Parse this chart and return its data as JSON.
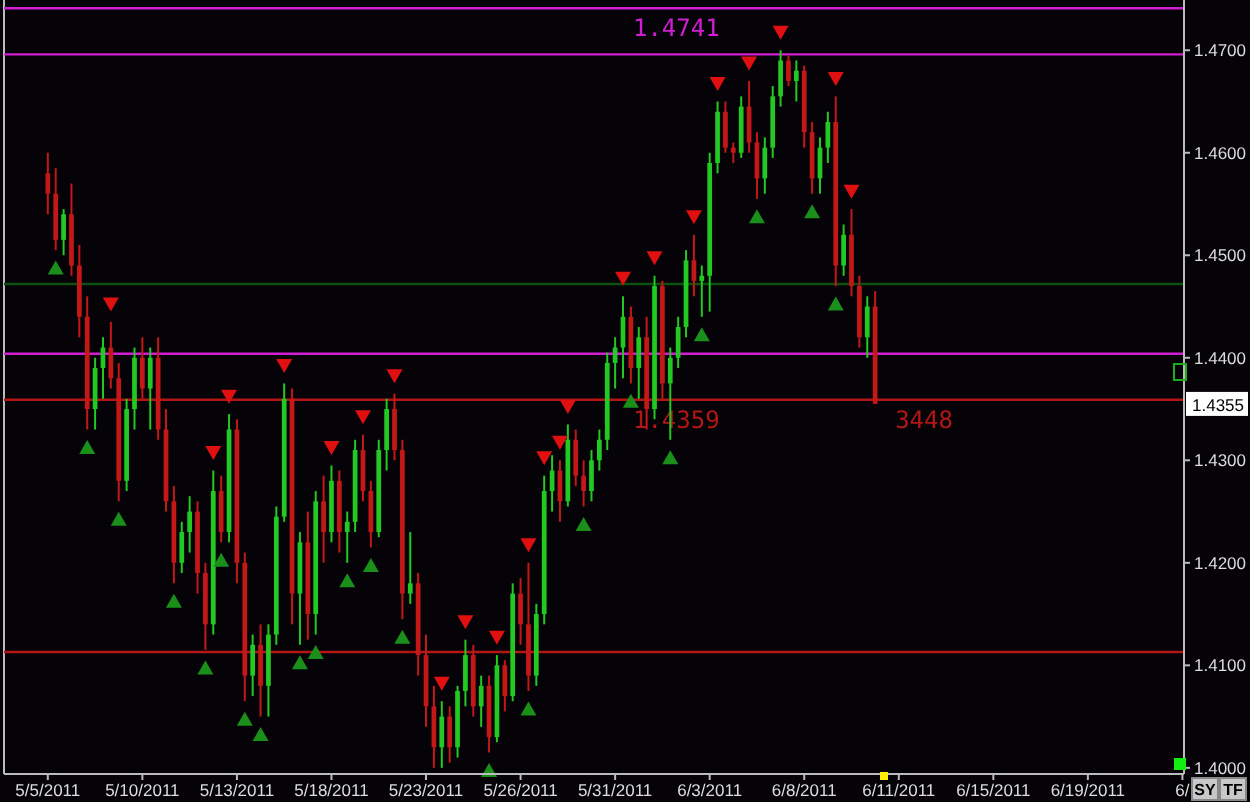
{
  "chart_data": {
    "type": "candlestick",
    "categories": [
      "5/5/2011",
      null,
      null,
      null,
      null,
      null,
      null,
      null,
      null,
      null,
      null,
      null,
      "5/10/2011",
      null,
      null,
      null,
      null,
      null,
      null,
      null,
      null,
      null,
      null,
      null,
      "5/13/2011",
      null,
      null,
      null,
      null,
      null,
      null,
      null,
      null,
      null,
      null,
      null,
      "5/18/2011",
      null,
      null,
      null,
      null,
      null,
      null,
      null,
      null,
      null,
      null,
      null,
      "5/23/2011",
      null,
      null,
      null,
      null,
      null,
      null,
      null,
      null,
      null,
      null,
      null,
      "5/26/2011",
      null,
      null,
      null,
      null,
      null,
      null,
      null,
      null,
      null,
      null,
      null,
      "5/31/2011",
      null,
      null,
      null,
      null,
      null,
      null,
      null,
      null,
      null,
      null,
      null,
      "6/3/2011",
      null,
      null,
      null,
      null,
      null,
      null,
      null,
      null,
      null,
      null,
      null,
      "6/8/2011",
      null,
      null,
      null,
      null,
      null,
      null,
      null,
      null,
      null,
      null,
      null,
      "6/11/2011",
      null,
      null,
      null,
      null,
      null,
      null,
      null,
      null,
      null,
      null,
      null,
      "6/15/2011",
      null,
      null,
      null,
      null,
      null,
      null,
      null,
      null,
      null,
      null,
      null,
      "6/19/2011",
      null,
      null,
      null,
      null,
      null,
      null,
      null,
      null,
      null,
      null,
      null,
      "6/"
    ],
    "ohlc": [
      [
        1.458,
        1.46,
        1.454,
        1.456
      ],
      [
        1.456,
        1.4585,
        1.4505,
        1.4515
      ],
      [
        1.4515,
        1.4545,
        1.45,
        1.454
      ],
      [
        1.454,
        1.457,
        1.448,
        1.449
      ],
      [
        1.449,
        1.451,
        1.442,
        1.444
      ],
      [
        1.444,
        1.446,
        1.433,
        1.435
      ],
      [
        1.435,
        1.44,
        1.433,
        1.439
      ],
      [
        1.439,
        1.442,
        1.436,
        1.441
      ],
      [
        1.441,
        1.4435,
        1.437,
        1.438
      ],
      [
        1.438,
        1.4395,
        1.426,
        1.428
      ],
      [
        1.428,
        1.436,
        1.427,
        1.435
      ],
      [
        1.435,
        1.441,
        1.433,
        1.44
      ],
      [
        1.44,
        1.442,
        1.436,
        1.437
      ],
      [
        1.437,
        1.441,
        1.433,
        1.44
      ],
      [
        1.44,
        1.442,
        1.432,
        1.433
      ],
      [
        1.433,
        1.435,
        1.425,
        1.426
      ],
      [
        1.426,
        1.4275,
        1.418,
        1.42
      ],
      [
        1.42,
        1.424,
        1.419,
        1.423
      ],
      [
        1.423,
        1.4265,
        1.421,
        1.425
      ],
      [
        1.425,
        1.426,
        1.417,
        1.419
      ],
      [
        1.419,
        1.42,
        1.4115,
        1.414
      ],
      [
        1.414,
        1.429,
        1.413,
        1.427
      ],
      [
        1.427,
        1.4285,
        1.422,
        1.423
      ],
      [
        1.423,
        1.4345,
        1.422,
        1.433
      ],
      [
        1.433,
        1.434,
        1.418,
        1.42
      ],
      [
        1.42,
        1.421,
        1.4065,
        1.409
      ],
      [
        1.409,
        1.413,
        1.407,
        1.412
      ],
      [
        1.412,
        1.414,
        1.405,
        1.408
      ],
      [
        1.408,
        1.414,
        1.405,
        1.413
      ],
      [
        1.413,
        1.4255,
        1.412,
        1.4245
      ],
      [
        1.4245,
        1.4375,
        1.424,
        1.436
      ],
      [
        1.436,
        1.437,
        1.414,
        1.417
      ],
      [
        1.417,
        1.423,
        1.412,
        1.422
      ],
      [
        1.422,
        1.425,
        1.4125,
        1.415
      ],
      [
        1.415,
        1.427,
        1.413,
        1.426
      ],
      [
        1.426,
        1.4285,
        1.42,
        1.423
      ],
      [
        1.423,
        1.4295,
        1.422,
        1.428
      ],
      [
        1.428,
        1.429,
        1.421,
        1.423
      ],
      [
        1.423,
        1.425,
        1.42,
        1.424
      ],
      [
        1.424,
        1.432,
        1.423,
        1.431
      ],
      [
        1.431,
        1.4325,
        1.426,
        1.427
      ],
      [
        1.427,
        1.428,
        1.4215,
        1.423
      ],
      [
        1.423,
        1.432,
        1.4225,
        1.431
      ],
      [
        1.431,
        1.436,
        1.429,
        1.435
      ],
      [
        1.435,
        1.4365,
        1.43,
        1.431
      ],
      [
        1.431,
        1.432,
        1.4145,
        1.417
      ],
      [
        1.417,
        1.423,
        1.416,
        1.418
      ],
      [
        1.418,
        1.419,
        1.409,
        1.411
      ],
      [
        1.411,
        1.413,
        1.404,
        1.406
      ],
      [
        1.406,
        1.408,
        1.4,
        1.402
      ],
      [
        1.402,
        1.4065,
        1.4,
        1.405
      ],
      [
        1.405,
        1.406,
        1.4005,
        1.402
      ],
      [
        1.402,
        1.408,
        1.401,
        1.4075
      ],
      [
        1.4075,
        1.4125,
        1.406,
        1.411
      ],
      [
        1.411,
        1.412,
        1.405,
        1.406
      ],
      [
        1.406,
        1.409,
        1.404,
        1.408
      ],
      [
        1.408,
        1.409,
        1.4015,
        1.403
      ],
      [
        1.403,
        1.411,
        1.4025,
        1.41
      ],
      [
        1.41,
        1.4105,
        1.4055,
        1.407
      ],
      [
        1.407,
        1.418,
        1.4065,
        1.417
      ],
      [
        1.417,
        1.4185,
        1.412,
        1.414
      ],
      [
        1.414,
        1.42,
        1.4075,
        1.409
      ],
      [
        1.409,
        1.416,
        1.408,
        1.415
      ],
      [
        1.415,
        1.4285,
        1.414,
        1.427
      ],
      [
        1.427,
        1.4305,
        1.425,
        1.429
      ],
      [
        1.429,
        1.43,
        1.424,
        1.426
      ],
      [
        1.426,
        1.4335,
        1.4255,
        1.432
      ],
      [
        1.432,
        1.433,
        1.4275,
        1.4285
      ],
      [
        1.4285,
        1.43,
        1.4255,
        1.427
      ],
      [
        1.427,
        1.431,
        1.426,
        1.43
      ],
      [
        1.43,
        1.433,
        1.429,
        1.432
      ],
      [
        1.432,
        1.4405,
        1.431,
        1.4395
      ],
      [
        1.4395,
        1.442,
        1.437,
        1.441
      ],
      [
        1.441,
        1.446,
        1.438,
        1.444
      ],
      [
        1.444,
        1.445,
        1.4375,
        1.439
      ],
      [
        1.439,
        1.443,
        1.436,
        1.442
      ],
      [
        1.442,
        1.444,
        1.433,
        1.435
      ],
      [
        1.435,
        1.448,
        1.434,
        1.447
      ],
      [
        1.447,
        1.4475,
        1.436,
        1.4375
      ],
      [
        1.4375,
        1.441,
        1.432,
        1.44
      ],
      [
        1.44,
        1.444,
        1.439,
        1.443
      ],
      [
        1.443,
        1.4505,
        1.442,
        1.4495
      ],
      [
        1.4495,
        1.452,
        1.446,
        1.4475
      ],
      [
        1.4475,
        1.449,
        1.444,
        1.448
      ],
      [
        1.448,
        1.46,
        1.4445,
        1.459
      ],
      [
        1.459,
        1.465,
        1.458,
        1.464
      ],
      [
        1.464,
        1.465,
        1.46,
        1.4605
      ],
      [
        1.4605,
        1.461,
        1.459,
        1.46
      ],
      [
        1.46,
        1.4655,
        1.4595,
        1.4645
      ],
      [
        1.4645,
        1.467,
        1.46,
        1.461
      ],
      [
        1.461,
        1.462,
        1.4555,
        1.4575
      ],
      [
        1.4575,
        1.4615,
        1.456,
        1.4605
      ],
      [
        1.4605,
        1.4665,
        1.4595,
        1.4655
      ],
      [
        1.4655,
        1.47,
        1.4645,
        1.469
      ],
      [
        1.469,
        1.4695,
        1.4665,
        1.467
      ],
      [
        1.467,
        1.469,
        1.465,
        1.468
      ],
      [
        1.468,
        1.4685,
        1.4605,
        1.462
      ],
      [
        1.462,
        1.463,
        1.456,
        1.4575
      ],
      [
        1.4575,
        1.4615,
        1.456,
        1.4605
      ],
      [
        1.4605,
        1.464,
        1.459,
        1.463
      ],
      [
        1.463,
        1.4655,
        1.447,
        1.449
      ],
      [
        1.449,
        1.453,
        1.448,
        1.452
      ],
      [
        1.452,
        1.4545,
        1.446,
        1.447
      ],
      [
        1.447,
        1.448,
        1.441,
        1.442
      ],
      [
        1.442,
        1.446,
        1.44,
        1.445
      ],
      [
        1.445,
        1.4465,
        1.4355,
        1.4355
      ],
      null,
      null,
      null,
      null,
      null,
      null,
      null,
      null,
      null,
      null,
      null,
      null,
      null,
      null,
      null,
      null,
      null,
      null,
      null,
      null,
      null,
      null,
      null,
      null,
      null,
      null,
      null,
      null,
      null,
      null,
      null,
      null,
      null,
      null,
      null,
      null,
      null,
      null,
      null
    ],
    "colors": [
      "#c41717",
      "#c41717",
      "#22c922",
      "#c41717",
      "#c41717",
      "#c41717",
      "#22c922",
      "#22c922",
      "#c41717",
      "#c41717",
      "#22c922",
      "#22c922",
      "#c41717",
      "#22c922",
      "#c41717",
      "#c41717",
      "#c41717",
      "#22c922",
      "#22c922",
      "#c41717",
      "#c41717",
      "#22c922",
      "#c41717",
      "#22c922",
      "#c41717",
      "#c41717",
      "#22c922",
      "#c41717",
      "#22c922",
      "#22c922",
      "#22c922",
      "#c41717",
      "#22c922",
      "#c41717",
      "#22c922",
      "#c41717",
      "#22c922",
      "#c41717",
      "#22c922",
      "#22c922",
      "#c41717",
      "#c41717",
      "#22c922",
      "#22c922",
      "#c41717",
      "#c41717",
      "#22c922",
      "#c41717",
      "#c41717",
      "#c41717",
      "#22c922",
      "#c41717",
      "#22c922",
      "#22c922",
      "#c41717",
      "#22c922",
      "#c41717",
      "#22c922",
      "#c41717",
      "#22c922",
      "#c41717",
      "#c41717",
      "#22c922",
      "#22c922",
      "#22c922",
      "#c41717",
      "#22c922",
      "#c41717",
      "#c41717",
      "#22c922",
      "#22c922",
      "#22c922",
      "#22c922",
      "#22c922",
      "#c41717",
      "#22c922",
      "#c41717",
      "#22c922",
      "#c41717",
      "#22c922",
      "#22c922",
      "#22c922",
      "#c41717",
      "#22c922",
      "#22c922",
      "#22c922",
      "#c41717",
      "#c41717",
      "#22c922",
      "#c41717",
      "#c41717",
      "#22c922",
      "#22c922",
      "#22c922",
      "#c41717",
      "#22c922",
      "#c41717",
      "#c41717",
      "#22c922",
      "#22c922",
      "#c41717",
      "#22c922",
      "#c41717",
      "#c41717",
      "#22c922",
      "#c41717",
      null,
      null,
      null,
      null,
      null,
      null,
      null,
      null,
      null,
      null,
      null,
      null,
      null,
      null,
      null,
      null,
      null,
      null,
      null,
      null,
      null,
      null,
      null,
      null,
      null,
      null,
      null,
      null,
      null,
      null,
      null,
      null,
      null,
      null,
      null,
      null,
      null,
      null,
      null
    ],
    "series": [
      {
        "type": "scatter",
        "marker": "triangle",
        "color": "#e01010",
        "values": [
          null,
          null,
          null,
          null,
          null,
          null,
          null,
          null,
          1.4453,
          null,
          null,
          null,
          null,
          null,
          null,
          null,
          null,
          null,
          null,
          null,
          null,
          1.4308,
          null,
          1.4363,
          null,
          null,
          null,
          null,
          null,
          null,
          1.4393,
          null,
          null,
          null,
          null,
          null,
          1.4313,
          null,
          null,
          null,
          1.4343,
          null,
          null,
          null,
          1.4383,
          null,
          null,
          null,
          null,
          null,
          1.4083,
          null,
          null,
          1.4143,
          null,
          null,
          null,
          1.4128,
          null,
          null,
          null,
          1.4218,
          null,
          1.4303,
          null,
          1.4318,
          1.4353,
          null,
          null,
          null,
          null,
          null,
          null,
          1.4478,
          null,
          null,
          null,
          1.4498,
          null,
          null,
          null,
          null,
          1.4538,
          null,
          null,
          1.4668,
          null,
          null,
          null,
          1.4688,
          null,
          null,
          null,
          1.4718,
          null,
          null,
          null,
          null,
          null,
          null,
          1.4673,
          null,
          1.4563,
          null,
          null,
          null,
          null,
          null,
          null,
          null,
          null,
          null,
          null,
          null,
          null,
          null,
          null,
          null,
          null,
          null,
          null,
          null,
          null,
          null,
          null,
          null,
          null,
          null,
          null,
          null,
          null,
          null,
          null,
          null,
          null,
          null,
          null,
          null,
          null,
          null,
          null,
          null,
          null,
          null,
          null
        ]
      },
      {
        "type": "scatter",
        "marker": "triangle",
        "color": "#1a8f1a",
        "values": [
          null,
          1.4487,
          null,
          null,
          null,
          1.4312,
          null,
          null,
          null,
          1.4242,
          null,
          null,
          null,
          null,
          null,
          null,
          1.4162,
          null,
          null,
          null,
          1.4097,
          null,
          1.4202,
          null,
          null,
          1.4047,
          null,
          1.4032,
          null,
          null,
          null,
          null,
          1.4102,
          null,
          1.4112,
          null,
          null,
          null,
          1.4182,
          null,
          null,
          1.4197,
          null,
          null,
          null,
          1.4127,
          null,
          null,
          null,
          null,
          null,
          null,
          null,
          null,
          null,
          null,
          1.3997,
          null,
          null,
          null,
          null,
          1.4057,
          null,
          null,
          null,
          null,
          null,
          null,
          1.4237,
          null,
          null,
          null,
          null,
          null,
          1.4357,
          null,
          null,
          null,
          null,
          1.4302,
          null,
          null,
          null,
          1.4422,
          null,
          null,
          null,
          null,
          null,
          null,
          1.4537,
          null,
          null,
          null,
          null,
          null,
          null,
          1.4542,
          null,
          null,
          1.4452,
          null,
          null,
          null,
          null,
          null,
          null,
          null,
          null,
          null,
          null,
          null,
          null,
          null,
          null,
          null,
          null,
          null,
          null,
          null,
          null,
          null,
          null,
          null,
          null,
          null,
          null,
          null,
          null,
          null,
          null,
          null,
          null,
          null,
          null,
          null,
          null,
          null,
          null,
          null,
          null,
          null,
          null,
          null,
          null
        ]
      }
    ],
    "ylim": [
      1.3994,
      1.4749
    ],
    "yticks": [
      {
        "value": 1.4,
        "label": "1.4000"
      },
      {
        "value": 1.41,
        "label": "1.4100"
      },
      {
        "value": 1.42,
        "label": "1.4200"
      },
      {
        "value": 1.43,
        "label": "1.4300"
      },
      {
        "value": 1.44,
        "label": "1.4400"
      },
      {
        "value": 1.45,
        "label": "1.4500"
      },
      {
        "value": 1.46,
        "label": "1.4600"
      },
      {
        "value": 1.47,
        "label": "1.4700"
      }
    ],
    "ref_lines": [
      {
        "axis": "y",
        "value": 1.4741,
        "label": "1.4741",
        "color": "#d21ed2"
      },
      {
        "axis": "y",
        "value": 1.4696,
        "color": "#d21ed2"
      },
      {
        "axis": "y",
        "value": 1.4472,
        "color": "#0f4f0f"
      },
      {
        "axis": "y",
        "value": 1.4404,
        "color": "#d21ed2"
      },
      {
        "axis": "y",
        "value": 1.4359,
        "label": "1.4359",
        "color": "#b41616"
      },
      {
        "axis": "y",
        "value": 1.4113,
        "color": "#b41616"
      }
    ],
    "annotations": [
      {
        "text": "3448",
        "y": 1.4359
      },
      {
        "text": "1.4355",
        "y": 1.4355
      },
      "SY",
      "TF"
    ]
  }
}
